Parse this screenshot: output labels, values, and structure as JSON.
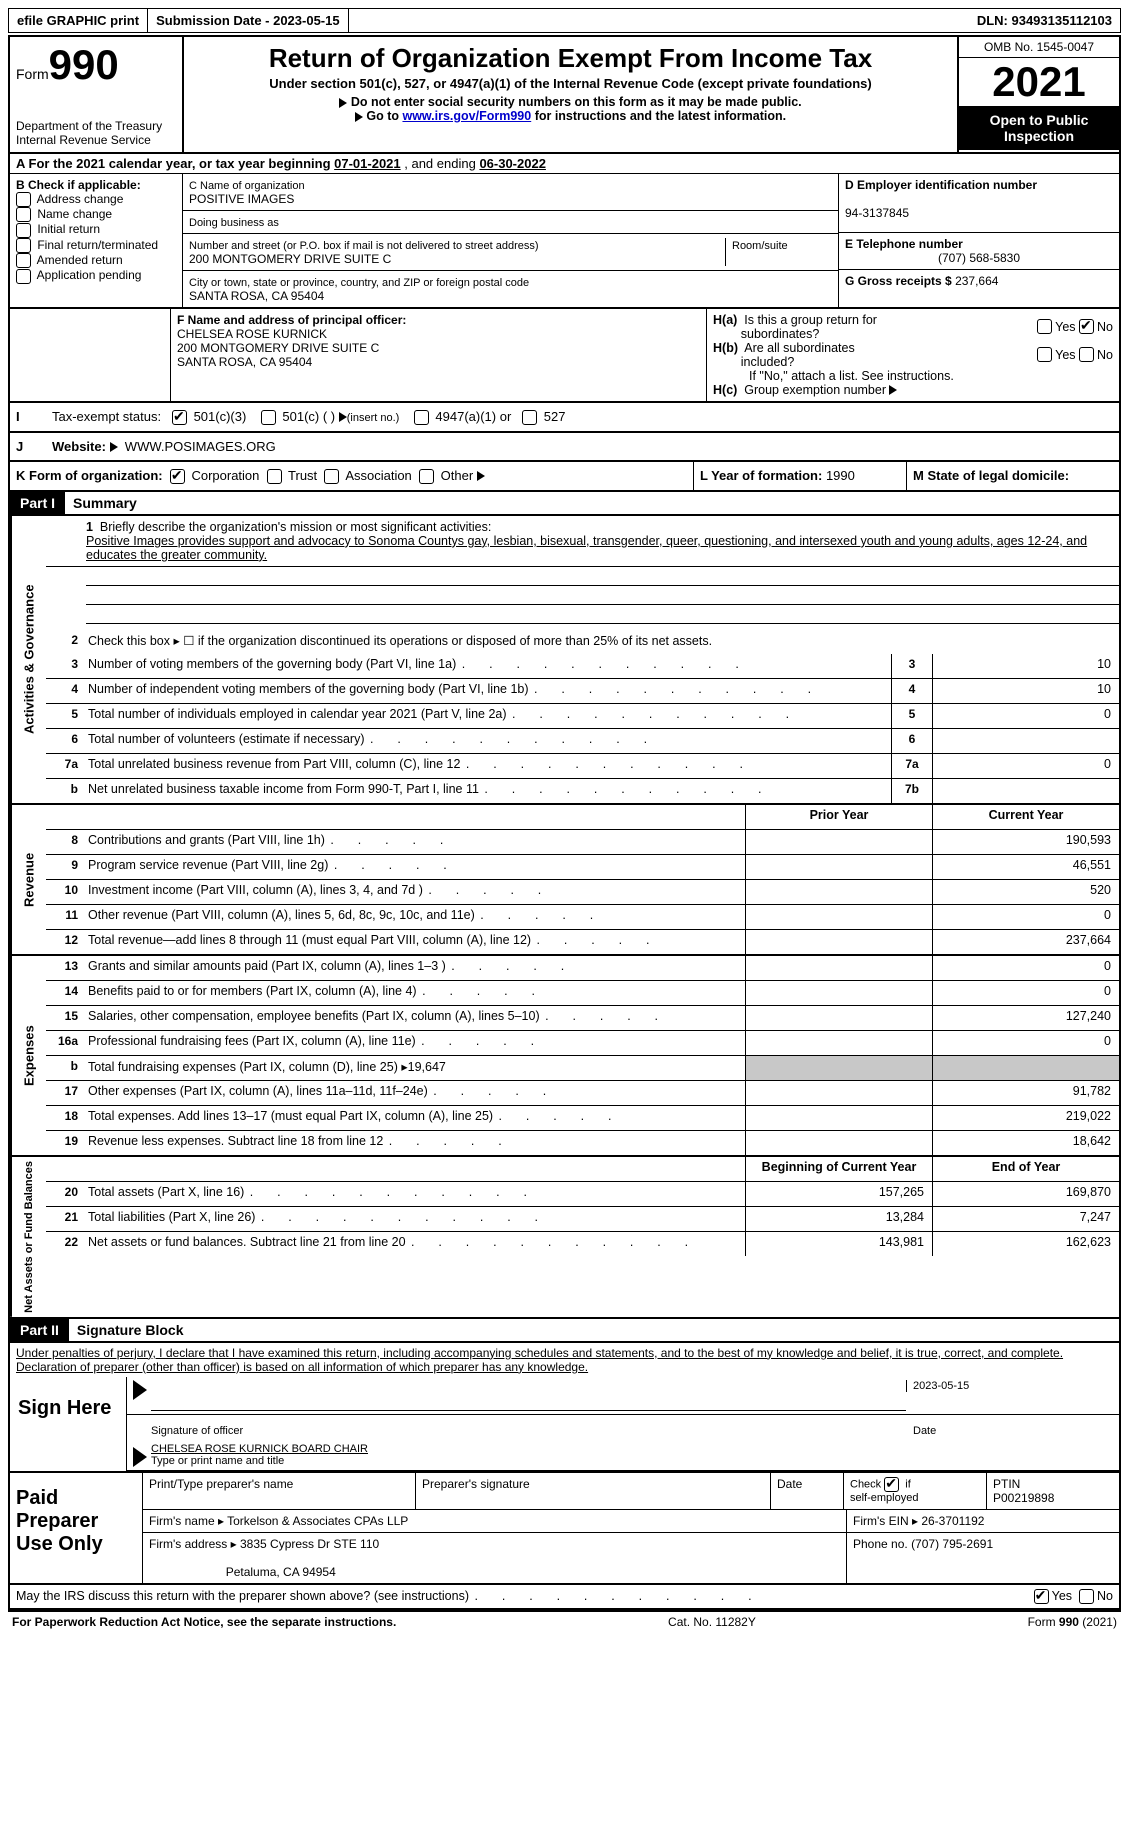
{
  "topbar": {
    "efile": "efile GRAPHIC print",
    "submission": "Submission Date - 2023-05-15",
    "dln": "DLN: 93493135112103"
  },
  "header": {
    "form_label": "Form",
    "form_number": "990",
    "title": "Return of Organization Exempt From Income Tax",
    "subtitle": "Under section 501(c), 527, or 4947(a)(1) of the Internal Revenue Code (except private foundations)",
    "note1": "Do not enter social security numbers on this form as it may be made public.",
    "note2_pre": "Go to ",
    "note2_link": "www.irs.gov/Form990",
    "note2_post": " for instructions and the latest information.",
    "dept": "Department of the Treasury\nInternal Revenue Service",
    "omb": "OMB No. 1545-0047",
    "year": "2021",
    "inspection": "Open to Public Inspection"
  },
  "section_a": {
    "label": "A For the 2021 calendar year, or tax year beginning ",
    "begin": "07-01-2021",
    "mid": " , and ending ",
    "end": "06-30-2022"
  },
  "section_b": {
    "label": "B Check if applicable:",
    "opts": [
      "Address change",
      "Name change",
      "Initial return",
      "Final return/terminated",
      "Amended return",
      "Application pending"
    ]
  },
  "section_c": {
    "name_label": "C Name of organization",
    "name": "POSITIVE IMAGES",
    "dba_label": "Doing business as",
    "addr_label": "Number and street (or P.O. box if mail is not delivered to street address)",
    "room_label": "Room/suite",
    "addr": "200 MONTGOMERY DRIVE SUITE C",
    "city_label": "City or town, state or province, country, and ZIP or foreign postal code",
    "city": "SANTA ROSA, CA  95404"
  },
  "section_d": {
    "ein_label": "D Employer identification number",
    "ein": "94-3137845",
    "phone_label": "E Telephone number",
    "phone": "(707) 568-5830",
    "gross_label": "G Gross receipts $ ",
    "gross": "237,664"
  },
  "section_f": {
    "label": "F Name and address of principal officer:",
    "name": "CHELSEA ROSE KURNICK",
    "addr1": "200 MONTGOMERY DRIVE SUITE C",
    "addr2": "SANTA ROSA, CA  95404"
  },
  "section_h": {
    "ha_label": "H(a)  Is this a group return for subordinates?",
    "hb_label": "H(b)  Are all subordinates included?",
    "hb_note": "If \"No,\" attach a list. See instructions.",
    "hc_label": "H(c)  Group exemption number",
    "yes": "Yes",
    "no": "No"
  },
  "section_i": {
    "label": "Tax-exempt status:",
    "o1": "501(c)(3)",
    "o2": "501(c) (  )",
    "o2_note": "(insert no.)",
    "o3": "4947(a)(1) or",
    "o4": "527"
  },
  "section_j": {
    "label": "Website:",
    "value": "WWW.POSIMAGES.ORG"
  },
  "section_k": {
    "label": "K Form of organization:",
    "opts": [
      "Corporation",
      "Trust",
      "Association",
      "Other"
    ],
    "l_label": "L Year of formation: ",
    "l_val": "1990",
    "m_label": "M State of legal domicile:"
  },
  "part1": {
    "header": "Part I",
    "title": "Summary",
    "tab1": "Activities & Governance",
    "tab2": "Revenue",
    "tab3": "Expenses",
    "tab4": "Net Assets or Fund Balances",
    "line1_label": "Briefly describe the organization's mission or most significant activities:",
    "mission": "Positive Images provides support and advocacy to Sonoma Countys gay, lesbian, bisexual, transgender, queer, questioning, and intersexed youth and young adults, ages 12-24, and educates the greater community.",
    "line2": "Check this box ▸ ☐ if the organization discontinued its operations or disposed of more than 25% of its net assets.",
    "lines_gov": [
      {
        "n": "3",
        "d": "Number of voting members of the governing body (Part VI, line 1a)",
        "b": "3",
        "v": "10"
      },
      {
        "n": "4",
        "d": "Number of independent voting members of the governing body (Part VI, line 1b)",
        "b": "4",
        "v": "10"
      },
      {
        "n": "5",
        "d": "Total number of individuals employed in calendar year 2021 (Part V, line 2a)",
        "b": "5",
        "v": "0"
      },
      {
        "n": "6",
        "d": "Total number of volunteers (estimate if necessary)",
        "b": "6",
        "v": ""
      },
      {
        "n": "7a",
        "d": "Total unrelated business revenue from Part VIII, column (C), line 12",
        "b": "7a",
        "v": "0"
      },
      {
        "n": "b",
        "d": "Net unrelated business taxable income from Form 990-T, Part I, line 11",
        "b": "7b",
        "v": ""
      }
    ],
    "col_prior": "Prior Year",
    "col_current": "Current Year",
    "lines_rev": [
      {
        "n": "8",
        "d": "Contributions and grants (Part VIII, line 1h)",
        "p": "",
        "c": "190,593"
      },
      {
        "n": "9",
        "d": "Program service revenue (Part VIII, line 2g)",
        "p": "",
        "c": "46,551"
      },
      {
        "n": "10",
        "d": "Investment income (Part VIII, column (A), lines 3, 4, and 7d )",
        "p": "",
        "c": "520"
      },
      {
        "n": "11",
        "d": "Other revenue (Part VIII, column (A), lines 5, 6d, 8c, 9c, 10c, and 11e)",
        "p": "",
        "c": "0"
      },
      {
        "n": "12",
        "d": "Total revenue—add lines 8 through 11 (must equal Part VIII, column (A), line 12)",
        "p": "",
        "c": "237,664"
      }
    ],
    "lines_exp": [
      {
        "n": "13",
        "d": "Grants and similar amounts paid (Part IX, column (A), lines 1–3 )",
        "p": "",
        "c": "0"
      },
      {
        "n": "14",
        "d": "Benefits paid to or for members (Part IX, column (A), line 4)",
        "p": "",
        "c": "0"
      },
      {
        "n": "15",
        "d": "Salaries, other compensation, employee benefits (Part IX, column (A), lines 5–10)",
        "p": "",
        "c": "127,240"
      },
      {
        "n": "16a",
        "d": "Professional fundraising fees (Part IX, column (A), line 11e)",
        "p": "",
        "c": "0"
      },
      {
        "n": "b",
        "d": "Total fundraising expenses (Part IX, column (D), line 25) ▸19,647",
        "grey": true
      },
      {
        "n": "17",
        "d": "Other expenses (Part IX, column (A), lines 11a–11d, 11f–24e)",
        "p": "",
        "c": "91,782"
      },
      {
        "n": "18",
        "d": "Total expenses. Add lines 13–17 (must equal Part IX, column (A), line 25)",
        "p": "",
        "c": "219,022"
      },
      {
        "n": "19",
        "d": "Revenue less expenses. Subtract line 18 from line 12",
        "p": "",
        "c": "18,642"
      }
    ],
    "col_begin": "Beginning of Current Year",
    "col_end": "End of Year",
    "lines_net": [
      {
        "n": "20",
        "d": "Total assets (Part X, line 16)",
        "p": "157,265",
        "c": "169,870"
      },
      {
        "n": "21",
        "d": "Total liabilities (Part X, line 26)",
        "p": "13,284",
        "c": "7,247"
      },
      {
        "n": "22",
        "d": "Net assets or fund balances. Subtract line 21 from line 20",
        "p": "143,981",
        "c": "162,623"
      }
    ]
  },
  "part2": {
    "header": "Part II",
    "title": "Signature Block",
    "penalty": "Under penalties of perjury, I declare that I have examined this return, including accompanying schedules and statements, and to the best of my knowledge and belief, it is true, correct, and complete. Declaration of preparer (other than officer) is based on all information of which preparer has any knowledge.",
    "sign_here": "Sign Here",
    "sig_officer": "Signature of officer",
    "date_label": "Date",
    "sig_date": "2023-05-15",
    "officer_name": "CHELSEA ROSE KURNICK BOARD CHAIR",
    "type_name": "Type or print name and title",
    "paid_prep": "Paid Preparer Use Only",
    "print_name": "Print/Type preparer's name",
    "prep_sig": "Preparer's signature",
    "check_self": "Check ☑ if self-employed",
    "ptin_label": "PTIN",
    "ptin": "P00219898",
    "firm_name_label": "Firm's name   ▸ ",
    "firm_name": "Torkelson & Associates CPAs LLP",
    "firm_ein_label": "Firm's EIN ▸ ",
    "firm_ein": "26-3701192",
    "firm_addr_label": "Firm's address ▸ ",
    "firm_addr1": "3835 Cypress Dr STE 110",
    "firm_addr2": "Petaluma, CA  94954",
    "firm_phone_label": "Phone no. ",
    "firm_phone": "(707) 795-2691",
    "discuss": "May the IRS discuss this return with the preparer shown above? (see instructions)"
  },
  "footer": {
    "left": "For Paperwork Reduction Act Notice, see the separate instructions.",
    "mid": "Cat. No. 11282Y",
    "right": "Form 990 (2021)"
  }
}
